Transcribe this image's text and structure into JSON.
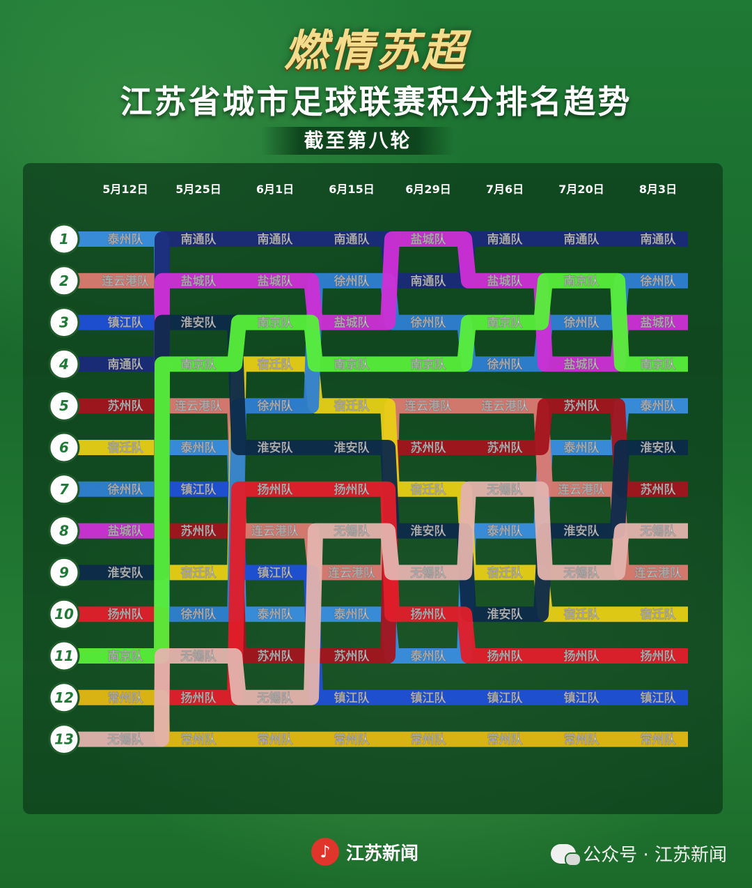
{
  "header": {
    "brand": "燃情苏超",
    "title": "江苏省城市足球联赛积分排名趋势",
    "subtitle": "截至第八轮"
  },
  "footer": {
    "logo_text": "江苏新闻",
    "wechat_text": "公众号 · 江苏新闻"
  },
  "colors": {
    "泰州队": "#3a8ee0",
    "连云港队": "#dc7a72",
    "镇江队": "#1f4fd8",
    "南通队": "#1b2a7a",
    "苏州队": "#a3141e",
    "宿迁队": "#e8cf16",
    "徐州队": "#2f7fd3",
    "盐城队": "#cf2fd6",
    "淮安队": "#0c2a4a",
    "扬州队": "#e21d2a",
    "南京队": "#57ef3a",
    "常州队": "#e3b813",
    "无锡队": "#e3b3ad"
  },
  "chart_data": {
    "type": "line",
    "subtype": "bump",
    "dates": [
      "5月12日",
      "5月25日",
      "6月1日",
      "6月15日",
      "6月29日",
      "7月6日",
      "7月20日",
      "8月3日"
    ],
    "ranks": [
      "1",
      "2",
      "3",
      "4",
      "5",
      "6",
      "7",
      "8",
      "9",
      "10",
      "11",
      "12",
      "13"
    ],
    "rankings": [
      [
        "泰州队",
        "连云港队",
        "镇江队",
        "南通队",
        "苏州队",
        "宿迁队",
        "徐州队",
        "盐城队",
        "淮安队",
        "扬州队",
        "南京队",
        "常州队",
        "无锡队"
      ],
      [
        "南通队",
        "盐城队",
        "淮安队",
        "南京队",
        "连云港队",
        "泰州队",
        "镇江队",
        "苏州队",
        "宿迁队",
        "徐州队",
        "无锡队",
        "扬州队",
        "常州队"
      ],
      [
        "南通队",
        "盐城队",
        "南京队",
        "宿迁队",
        "徐州队",
        "淮安队",
        "扬州队",
        "连云港队",
        "镇江队",
        "泰州队",
        "苏州队",
        "无锡队",
        "常州队"
      ],
      [
        "南通队",
        "徐州队",
        "盐城队",
        "南京队",
        "宿迁队",
        "淮安队",
        "扬州队",
        "无锡队",
        "连云港队",
        "泰州队",
        "苏州队",
        "镇江队",
        "常州队"
      ],
      [
        "盐城队",
        "南通队",
        "徐州队",
        "南京队",
        "连云港队",
        "苏州队",
        "宿迁队",
        "淮安队",
        "无锡队",
        "扬州队",
        "泰州队",
        "镇江队",
        "常州队"
      ],
      [
        "南通队",
        "盐城队",
        "南京队",
        "徐州队",
        "连云港队",
        "苏州队",
        "无锡队",
        "泰州队",
        "宿迁队",
        "淮安队",
        "扬州队",
        "镇江队",
        "常州队"
      ],
      [
        "南通队",
        "南京队",
        "徐州队",
        "盐城队",
        "苏州队",
        "泰州队",
        "连云港队",
        "淮安队",
        "无锡队",
        "宿迁队",
        "扬州队",
        "镇江队",
        "常州队"
      ],
      [
        "南通队",
        "徐州队",
        "盐城队",
        "南京队",
        "泰州队",
        "淮安队",
        "苏州队",
        "无锡队",
        "连云港队",
        "宿迁队",
        "扬州队",
        "镇江队",
        "常州队"
      ]
    ]
  }
}
